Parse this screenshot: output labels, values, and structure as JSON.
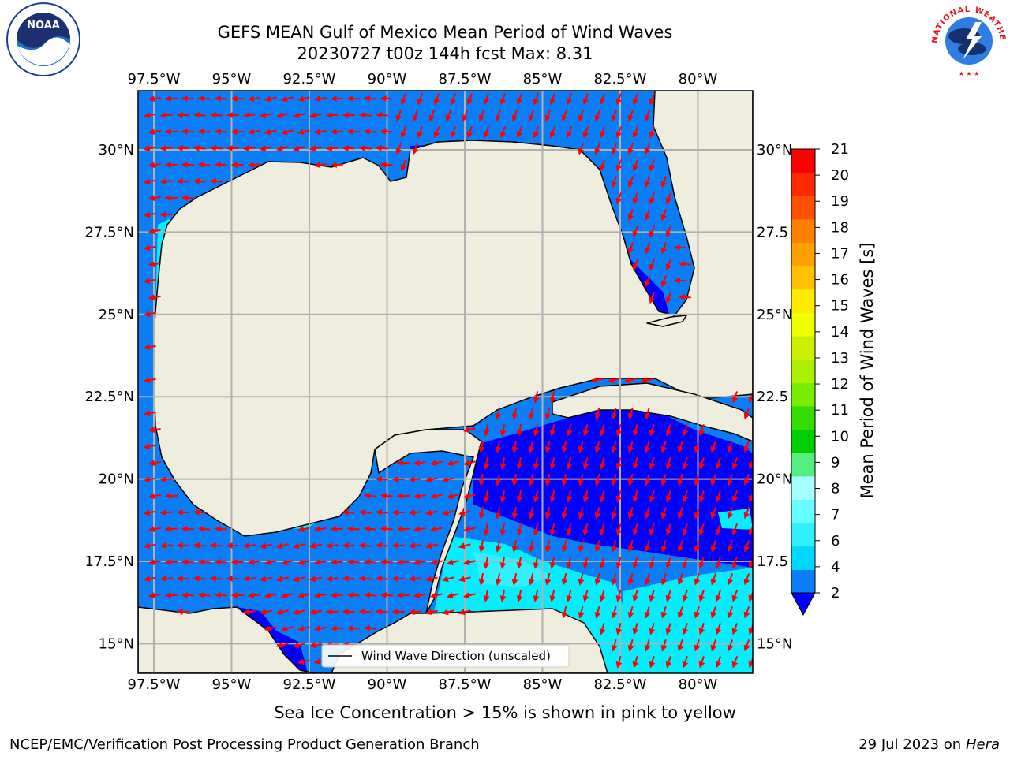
{
  "title": {
    "line1": "GEFS MEAN Gulf of Mexico Mean Period of Wind Waves",
    "line2": "20230727 t00z 144h fcst   Max: 8.31"
  },
  "map": {
    "lon_labels": [
      "97.5°W",
      "95°W",
      "92.5°W",
      "90°W",
      "87.5°W",
      "85°W",
      "82.5°W",
      "80°W"
    ],
    "lat_labels_left": [
      "30°N",
      "27.5°N",
      "25°N",
      "22.5°N",
      "20°N",
      "17.5°N",
      "15°N"
    ],
    "lat_labels_right": [
      "30°N",
      "27.5",
      "25°N",
      "22.5",
      "20°N",
      "17.5",
      "15°N"
    ],
    "legend_label": "Wind Wave Direction (unscaled)",
    "colors": {
      "land": "#efedde",
      "grid": "#b0b0b0",
      "arrow": "#ff0000"
    }
  },
  "colorbar": {
    "label": "Mean Period of Wind Waves [s]",
    "ticks": [
      "2",
      "4",
      "6",
      "7",
      "8",
      "9",
      "10",
      "11",
      "12",
      "13",
      "14",
      "15",
      "16",
      "17",
      "18",
      "19",
      "20",
      "21"
    ],
    "colors": [
      "#0a7ef7",
      "#00d8ff",
      "#33f0ff",
      "#66ffff",
      "#a6ffff",
      "#55ee80",
      "#00cc00",
      "#33dd00",
      "#77ee00",
      "#aaf000",
      "#ccf000",
      "#eeff00",
      "#ffea00",
      "#ffc000",
      "#ffa000",
      "#ff7f00",
      "#ff5000",
      "#ff2a00",
      "#ff0000"
    ],
    "extend_color": "#0000ff"
  },
  "caption": "Sea Ice Concentration > 15% is shown in pink to yellow",
  "footer": {
    "left": "NCEP/EMC/Verification Post Processing Product Generation Branch",
    "date": "29 Jul 2023 on ",
    "machine": "Hera"
  },
  "logos": {
    "noaa_text": "NOAA",
    "nws_text": "NATIONAL WEATHER SERVICE"
  }
}
